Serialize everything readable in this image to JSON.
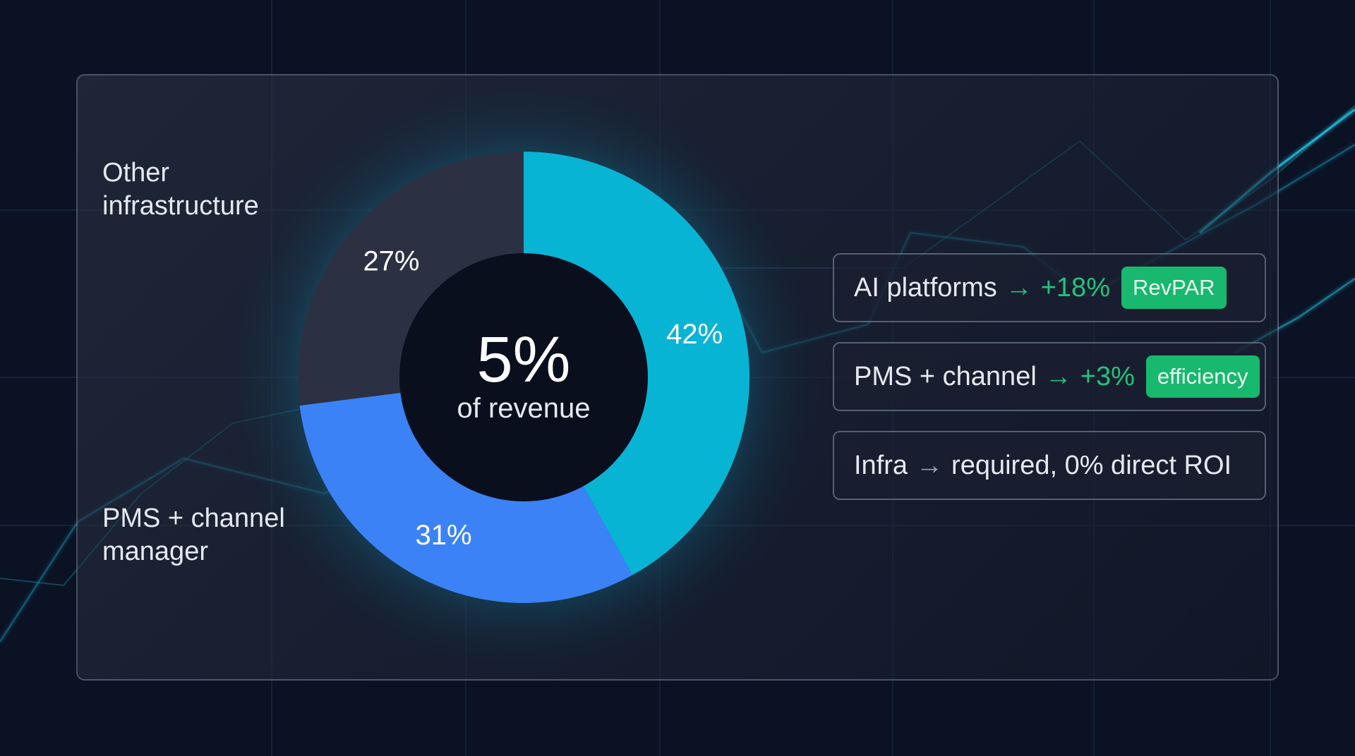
{
  "chart_data": {
    "type": "donut",
    "center": {
      "value": "5%",
      "label": "of revenue"
    },
    "slices": [
      {
        "label": "AI platforms",
        "value": 42,
        "display": "42%",
        "color": "#08b4d4"
      },
      {
        "label": "PMS + channel manager",
        "value": 31,
        "display": "31%",
        "color": "#3b82f6"
      },
      {
        "label": "Other infrastructure",
        "value": 27,
        "display": "27%",
        "color": "#2b3142"
      }
    ],
    "external_labels": {
      "other": "Other\ninfrastructure",
      "pms": "PMS + channel\nmanager"
    }
  },
  "cards": [
    {
      "text": "AI platforms",
      "arrow": "→",
      "delta": "+18%",
      "badge": "RevPAR"
    },
    {
      "text": "PMS + channel",
      "arrow": "→",
      "delta": "+3%",
      "badge": "efficiency"
    },
    {
      "text": "Infra",
      "arrow": "→",
      "rest": "required, 0% direct ROI"
    }
  ],
  "colors": {
    "background": "#0b1224",
    "accent_cyan": "#08b4d4",
    "accent_blue": "#3b82f6",
    "slice_dark": "#2b3142",
    "positive_green": "#22c37a",
    "badge_green": "#18b86e",
    "glow": "#12c6e8"
  }
}
